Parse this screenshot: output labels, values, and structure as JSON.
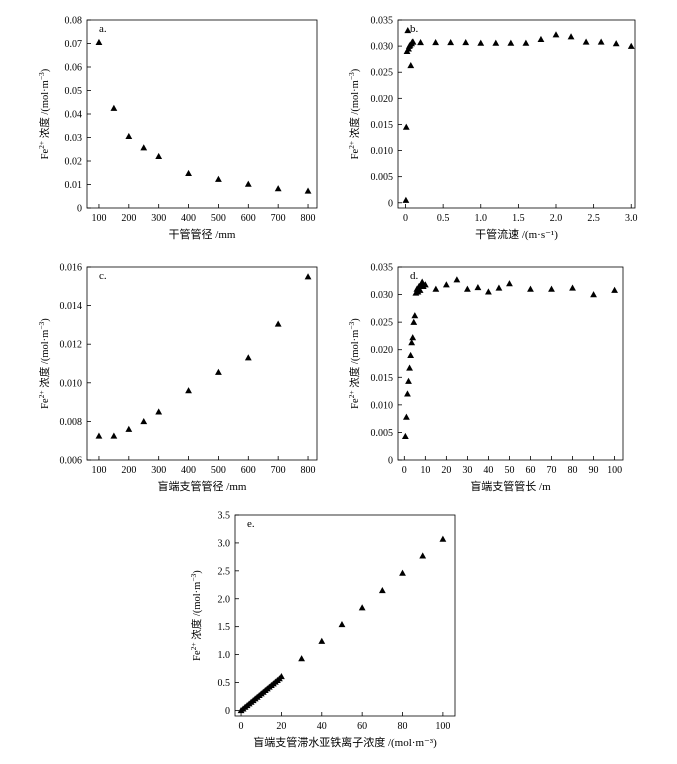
{
  "chart_data": [
    {
      "id": "a",
      "type": "scatter",
      "panel_label": "a.",
      "xlabel": "干管管径 /mm",
      "ylabel": {
        "pre": "Fe",
        "sup": "2+",
        "post": " 浓度 /(mol·m",
        "sup2": "−3",
        "end": ")"
      },
      "xlim": [
        60,
        830
      ],
      "ylim": [
        0,
        0.08
      ],
      "xticks": [
        100,
        200,
        300,
        400,
        500,
        600,
        700,
        800
      ],
      "yticks": [
        0,
        0.01,
        0.02,
        0.03,
        0.04,
        0.05,
        0.06,
        0.07,
        0.08
      ],
      "ytick_labels": [
        "0",
        "0.01",
        "0.02",
        "0.03",
        "0.04",
        "0.05",
        "0.06",
        "0.07",
        "0.08"
      ],
      "x": [
        100,
        150,
        200,
        250,
        300,
        400,
        500,
        600,
        700,
        800
      ],
      "y": [
        0.0705,
        0.0425,
        0.0305,
        0.0257,
        0.022,
        0.0148,
        0.0123,
        0.0102,
        0.0083,
        0.0073
      ]
    },
    {
      "id": "b",
      "type": "scatter",
      "panel_label": "b.",
      "xlabel": "干管流速 /(m·s⁻¹)",
      "ylabel": {
        "pre": "Fe",
        "sup": "2+",
        "post": " 浓度 /(mol·m",
        "sup2": "−3",
        "end": ")"
      },
      "xlim": [
        -0.1,
        3.05
      ],
      "ylim": [
        -0.001,
        0.035
      ],
      "xticks": [
        0,
        0.5,
        1.0,
        1.5,
        2.0,
        2.5,
        3.0
      ],
      "xtick_labels": [
        "0",
        "0.5",
        "1.0",
        "1.5",
        "2.0",
        "2.5",
        "3.0"
      ],
      "yticks": [
        0,
        0.005,
        0.01,
        0.015,
        0.02,
        0.025,
        0.03,
        0.035
      ],
      "ytick_labels": [
        "0",
        "0.005",
        "0.010",
        "0.015",
        "0.020",
        "0.025",
        "0.030",
        "0.035"
      ],
      "x": [
        0.005,
        0.01,
        0.02,
        0.03,
        0.04,
        0.05,
        0.06,
        0.07,
        0.08,
        0.09,
        0.1,
        0.2,
        0.4,
        0.6,
        0.8,
        1.0,
        1.2,
        1.4,
        1.6,
        1.8,
        2.0,
        2.2,
        2.4,
        2.6,
        2.8,
        3.0
      ],
      "y": [
        0.0005,
        0.0145,
        0.029,
        0.033,
        0.0295,
        0.03,
        0.0302,
        0.0263,
        0.0305,
        0.0308,
        0.0308,
        0.0307,
        0.0307,
        0.0307,
        0.0307,
        0.0306,
        0.0306,
        0.0306,
        0.0306,
        0.0313,
        0.0322,
        0.0318,
        0.0308,
        0.0308,
        0.0305,
        0.03
      ]
    },
    {
      "id": "c",
      "type": "scatter",
      "panel_label": "c.",
      "xlabel": "盲端支管管径 /mm",
      "ylabel": {
        "pre": "Fe",
        "sup": "2+",
        "post": " 浓度 /(mol·m",
        "sup2": "−3",
        "end": ")"
      },
      "xlim": [
        60,
        830
      ],
      "ylim": [
        0.006,
        0.016
      ],
      "xticks": [
        100,
        200,
        300,
        400,
        500,
        600,
        700,
        800
      ],
      "yticks": [
        0.006,
        0.008,
        0.01,
        0.012,
        0.014,
        0.016
      ],
      "ytick_labels": [
        "0.006",
        "0.008",
        "0.010",
        "0.012",
        "0.014",
        "0.016"
      ],
      "x": [
        100,
        150,
        200,
        250,
        300,
        400,
        500,
        600,
        700,
        800
      ],
      "y": [
        0.00725,
        0.00725,
        0.0076,
        0.008,
        0.0085,
        0.0096,
        0.01055,
        0.0113,
        0.01305,
        0.0155
      ]
    },
    {
      "id": "d",
      "type": "scatter",
      "panel_label": "d.",
      "xlabel": "盲端支管管长 /m",
      "ylabel": {
        "pre": "Fe",
        "sup": "2+",
        "post": " 浓度 /(mol·m",
        "sup2": "−3",
        "end": ")"
      },
      "xlim": [
        -3,
        104
      ],
      "ylim": [
        0,
        0.035
      ],
      "xticks": [
        0,
        10,
        20,
        30,
        40,
        50,
        60,
        70,
        80,
        90,
        100
      ],
      "yticks": [
        0,
        0.005,
        0.01,
        0.015,
        0.02,
        0.025,
        0.03,
        0.035
      ],
      "ytick_labels": [
        "0",
        "0.005",
        "0.010",
        "0.015",
        "0.020",
        "0.025",
        "0.030",
        "0.035"
      ],
      "x": [
        0.5,
        1,
        1.5,
        2,
        2.5,
        3,
        3.5,
        4,
        4.5,
        5,
        5.5,
        6,
        6.5,
        7,
        7.5,
        8,
        8.5,
        9,
        10,
        15,
        20,
        25,
        30,
        35,
        40,
        45,
        50,
        60,
        70,
        80,
        90,
        100
      ],
      "y": [
        0.0043,
        0.0078,
        0.012,
        0.0143,
        0.0167,
        0.019,
        0.0213,
        0.0222,
        0.025,
        0.0262,
        0.0303,
        0.031,
        0.0305,
        0.0315,
        0.0308,
        0.0318,
        0.0323,
        0.0315,
        0.0318,
        0.031,
        0.0318,
        0.0327,
        0.031,
        0.0313,
        0.0305,
        0.0312,
        0.032,
        0.031,
        0.031,
        0.0312,
        0.03,
        0.0308
      ]
    },
    {
      "id": "e",
      "type": "scatter",
      "panel_label": "e.",
      "xlabel": "盲端支管滞水亚铁离子浓度 /(mol·m⁻³)",
      "ylabel": {
        "pre": "Fe",
        "sup": "2+",
        "post": " 浓度 /(mol·m",
        "sup2": "−3",
        "end": ")"
      },
      "xlim": [
        -3,
        106
      ],
      "ylim": [
        -0.1,
        3.5
      ],
      "xticks": [
        0,
        20,
        40,
        60,
        80,
        100
      ],
      "yticks": [
        0,
        0.5,
        1.0,
        1.5,
        2.0,
        2.5,
        3.0,
        3.5
      ],
      "ytick_labels": [
        "0",
        "0.5",
        "1.0",
        "1.5",
        "2.0",
        "2.5",
        "3.0",
        "3.5"
      ],
      "x": [
        0,
        1,
        2,
        3,
        4,
        5,
        6,
        7,
        8,
        9,
        10,
        11,
        12,
        13,
        14,
        15,
        16,
        17,
        18,
        19,
        20,
        30,
        40,
        50,
        60,
        70,
        80,
        90,
        100
      ],
      "y": [
        0.0,
        0.03,
        0.06,
        0.09,
        0.12,
        0.15,
        0.18,
        0.21,
        0.24,
        0.27,
        0.3,
        0.33,
        0.36,
        0.39,
        0.42,
        0.45,
        0.48,
        0.51,
        0.54,
        0.57,
        0.61,
        0.93,
        1.24,
        1.54,
        1.84,
        2.15,
        2.46,
        2.77,
        3.07
      ]
    }
  ]
}
